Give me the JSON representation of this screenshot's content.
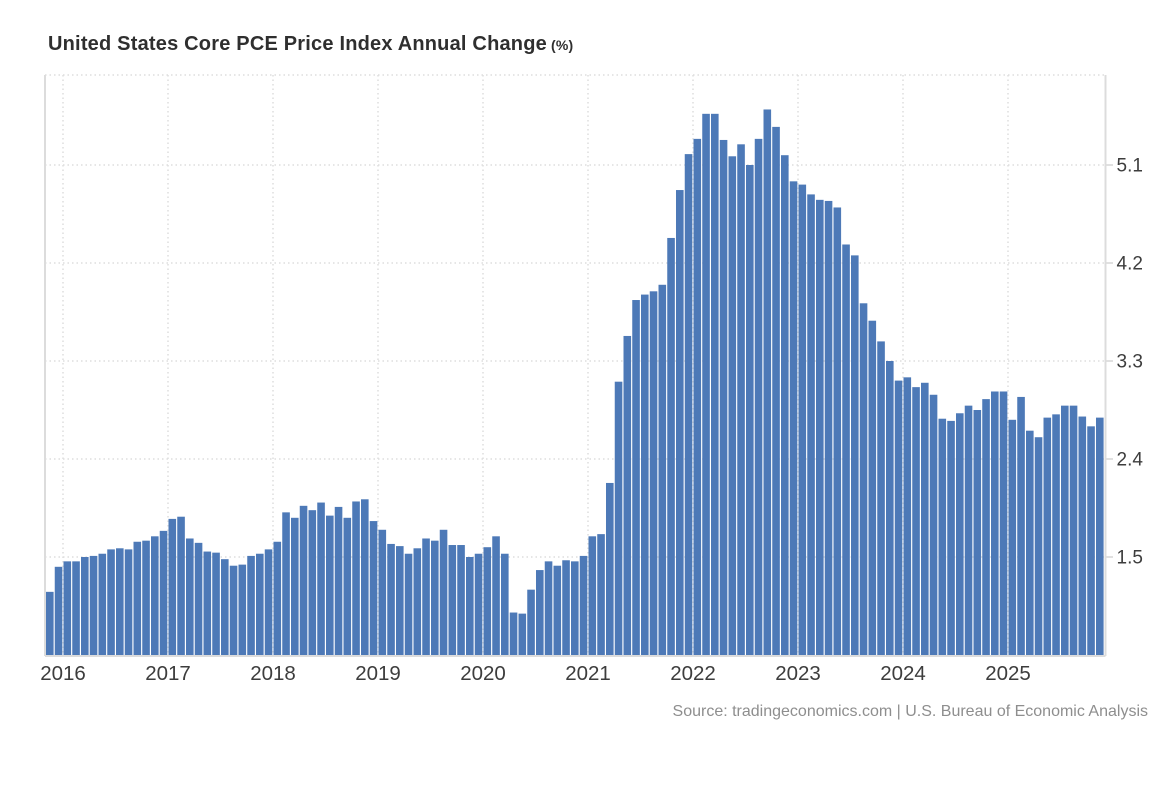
{
  "page": {
    "background": "#ffffff"
  },
  "header": {
    "title": "United States Core PCE Price Index Annual Change",
    "unit_suffix": "(%)"
  },
  "footer": {
    "source": "Source: tradingeconomics.com | U.S. Bureau of Economic Analysis"
  },
  "chart_data": {
    "type": "bar",
    "title": "United States Core PCE Price Index Annual Change (%)",
    "xlabel": "",
    "ylabel": "",
    "legend": "none",
    "grid": "dotted",
    "ylim": [
      0.6,
      5.93
    ],
    "y_ticks": [
      1.5,
      2.4,
      3.3,
      4.2,
      5.1
    ],
    "y_tick_labels": [
      "1.5",
      "2.4",
      "3.3",
      "4.2",
      "5.1"
    ],
    "x_tick_labels": [
      "2016",
      "2017",
      "2018",
      "2019",
      "2020",
      "2021",
      "2022",
      "2023",
      "2024",
      "2025"
    ],
    "bar_color": "#4d79b7",
    "grid_color": "#dedede",
    "axis_color": "#dcdcdc",
    "tick_color": "#d5d5d5",
    "label_color": "#3d3d3d",
    "months": [
      "2015-11",
      "2015-12",
      "2016-01",
      "2016-02",
      "2016-03",
      "2016-04",
      "2016-05",
      "2016-06",
      "2016-07",
      "2016-08",
      "2016-09",
      "2016-10",
      "2016-11",
      "2016-12",
      "2017-01",
      "2017-02",
      "2017-03",
      "2017-04",
      "2017-05",
      "2017-06",
      "2017-07",
      "2017-08",
      "2017-09",
      "2017-10",
      "2017-11",
      "2017-12",
      "2018-01",
      "2018-02",
      "2018-03",
      "2018-04",
      "2018-05",
      "2018-06",
      "2018-07",
      "2018-08",
      "2018-09",
      "2018-10",
      "2018-11",
      "2018-12",
      "2019-01",
      "2019-02",
      "2019-03",
      "2019-04",
      "2019-05",
      "2019-06",
      "2019-07",
      "2019-08",
      "2019-09",
      "2019-10",
      "2019-11",
      "2019-12",
      "2020-01",
      "2020-02",
      "2020-03",
      "2020-04",
      "2020-05",
      "2020-06",
      "2020-07",
      "2020-08",
      "2020-09",
      "2020-10",
      "2020-11",
      "2020-12",
      "2021-01",
      "2021-02",
      "2021-03",
      "2021-04",
      "2021-05",
      "2021-06",
      "2021-07",
      "2021-08",
      "2021-09",
      "2021-10",
      "2021-11",
      "2021-12",
      "2022-01",
      "2022-02",
      "2022-03",
      "2022-04",
      "2022-05",
      "2022-06",
      "2022-07",
      "2022-08",
      "2022-09",
      "2022-10",
      "2022-11",
      "2022-12",
      "2023-01",
      "2023-02",
      "2023-03",
      "2023-04",
      "2023-05",
      "2023-06",
      "2023-07",
      "2023-08",
      "2023-09",
      "2023-10",
      "2023-11",
      "2023-12",
      "2024-01",
      "2024-02",
      "2024-03",
      "2024-04",
      "2024-05",
      "2024-06",
      "2024-07",
      "2024-08",
      "2024-09",
      "2024-10",
      "2024-11",
      "2024-12",
      "2025-01",
      "2025-02",
      "2025-03",
      "2025-04",
      "2025-05",
      "2025-06",
      "2025-07",
      "2025-08",
      "2025-09",
      "2025-10",
      "2025-11"
    ],
    "values": [
      1.18,
      1.41,
      1.46,
      1.46,
      1.5,
      1.51,
      1.53,
      1.57,
      1.58,
      1.57,
      1.64,
      1.65,
      1.69,
      1.74,
      1.85,
      1.87,
      1.67,
      1.63,
      1.55,
      1.54,
      1.48,
      1.42,
      1.43,
      1.51,
      1.53,
      1.57,
      1.64,
      1.91,
      1.86,
      1.97,
      1.93,
      2.0,
      1.88,
      1.96,
      1.86,
      2.01,
      2.03,
      1.83,
      1.75,
      1.62,
      1.6,
      1.53,
      1.58,
      1.67,
      1.65,
      1.75,
      1.61,
      1.61,
      1.5,
      1.53,
      1.59,
      1.69,
      1.53,
      0.99,
      0.98,
      1.2,
      1.38,
      1.46,
      1.42,
      1.47,
      1.46,
      1.51,
      1.69,
      1.71,
      2.18,
      3.11,
      3.53,
      3.86,
      3.91,
      3.94,
      4.0,
      4.43,
      4.87,
      5.2,
      5.34,
      5.57,
      5.57,
      5.33,
      5.18,
      5.29,
      5.1,
      5.34,
      5.61,
      5.45,
      5.19,
      4.95,
      4.92,
      4.83,
      4.78,
      4.77,
      4.71,
      4.37,
      4.27,
      3.83,
      3.67,
      3.48,
      3.3,
      3.12,
      3.15,
      3.06,
      3.1,
      2.99,
      2.77,
      2.75,
      2.82,
      2.89,
      2.85,
      2.95,
      3.02,
      3.02,
      2.76,
      2.97,
      2.66,
      2.6,
      2.78,
      2.81,
      2.89,
      2.89,
      2.79,
      2.7,
      2.78
    ]
  }
}
